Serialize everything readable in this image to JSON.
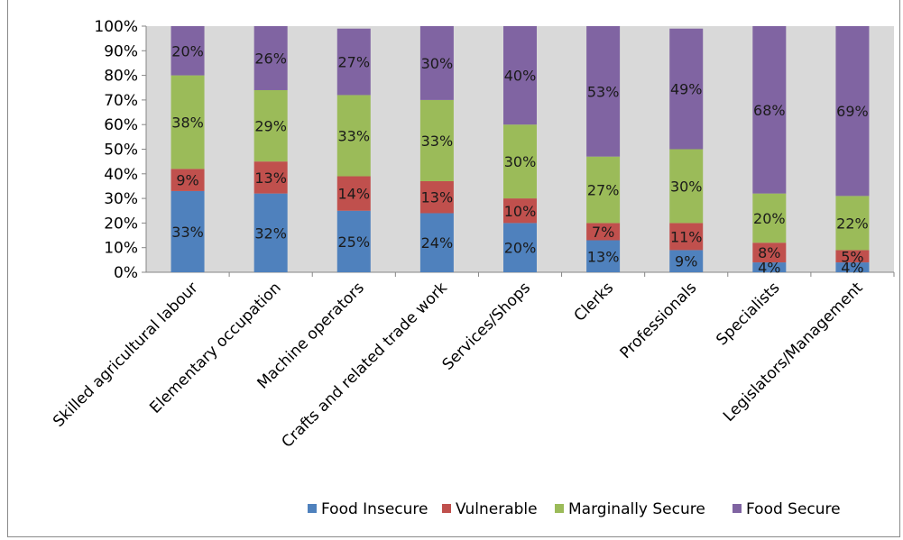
{
  "chart_data": {
    "type": "bar",
    "stacked": true,
    "percent_stacked": true,
    "categories": [
      "Skilled agricultural labour",
      "Elementary occupation",
      "Machine operators",
      "Crafts and related trade work",
      "Services/Shops",
      "Clerks",
      "Professionals",
      "Specialists",
      "Legislators/Management"
    ],
    "series": [
      {
        "name": "Food Insecure",
        "color": "#4f81bd",
        "values": [
          33,
          32,
          25,
          24,
          20,
          13,
          9,
          4,
          4
        ]
      },
      {
        "name": "Vulnerable",
        "color": "#c0504d",
        "values": [
          9,
          13,
          14,
          13,
          10,
          7,
          11,
          8,
          5
        ]
      },
      {
        "name": "Marginally Secure",
        "color": "#9bbb59",
        "values": [
          38,
          29,
          33,
          33,
          30,
          27,
          30,
          20,
          22
        ]
      },
      {
        "name": "Food Secure",
        "color": "#8064a2",
        "values": [
          20,
          26,
          27,
          30,
          40,
          53,
          49,
          68,
          69
        ]
      }
    ],
    "data_labels": [
      [
        "33%",
        "32%",
        "25%",
        "24%",
        "20%",
        "13%",
        "9%",
        "4%",
        "4%"
      ],
      [
        "9%",
        "13%",
        "14%",
        "13%",
        "10%",
        "7%",
        "11%",
        "8%",
        "5%"
      ],
      [
        "38%",
        "29%",
        "33%",
        "33%",
        "30%",
        "27%",
        "30%",
        "20%",
        "22%"
      ],
      [
        "20%",
        "26%",
        "27%",
        "30%",
        "40%",
        "53%",
        "49%",
        "68%",
        "69%"
      ]
    ],
    "y_ticks": [
      "0%",
      "10%",
      "20%",
      "30%",
      "40%",
      "50%",
      "60%",
      "70%",
      "80%",
      "90%",
      "100%"
    ],
    "ylim": [
      0,
      100
    ],
    "title": "",
    "xlabel": "",
    "ylabel": "",
    "grid": false,
    "plot_background": "#d9d9d9",
    "legend_position": "bottom"
  }
}
